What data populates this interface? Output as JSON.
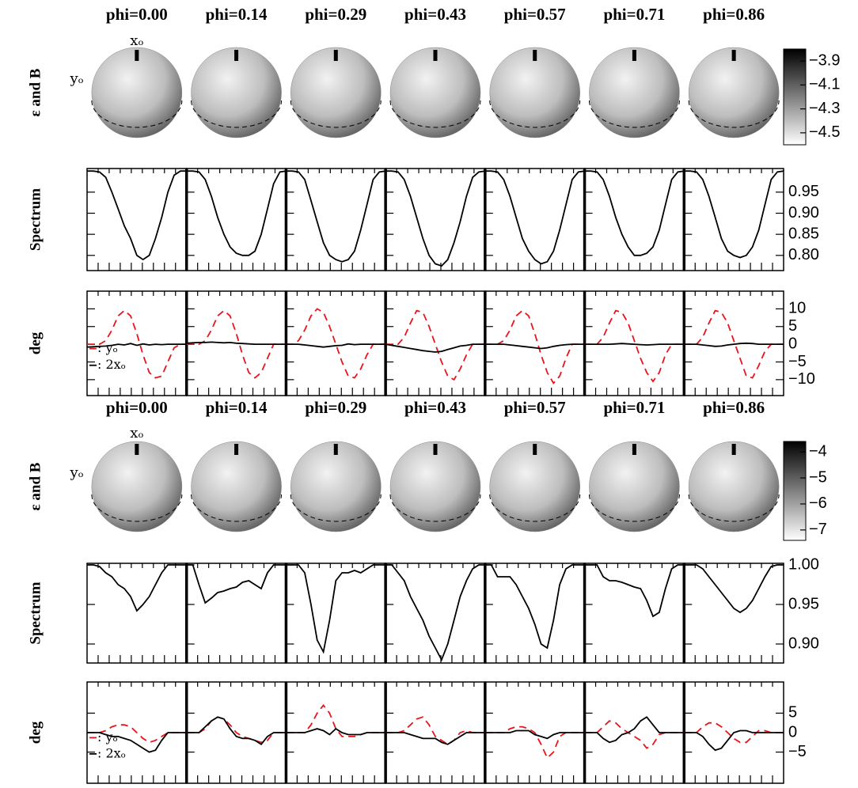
{
  "chart_data": [
    {
      "type": "phase-grid",
      "phases": [
        "phi=0.00",
        "phi=0.14",
        "phi=0.29",
        "phi=0.43",
        "phi=0.57",
        "phi=0.71",
        "phi=0.86"
      ],
      "map": {
        "ylabel": "ε and B",
        "x_label": "xₒ",
        "y_label": "yₒ",
        "colorbar": {
          "ylim": [
            -4.6,
            -3.8
          ],
          "yticks": [
            {
              "value": -3.9,
              "label": "−3.9"
            },
            {
              "value": -4.1,
              "label": "−4.1"
            },
            {
              "value": -4.3,
              "label": "−4.3"
            },
            {
              "value": -4.5,
              "label": "−4.5"
            }
          ]
        }
      },
      "spectrum": {
        "type": "line",
        "ylabel": "Spectrum",
        "color": "#000000",
        "ylim": [
          0.764,
          1.006
        ],
        "yticks": [
          0.95,
          {
            "value": 0.9,
            "label": "0.90"
          },
          0.85,
          {
            "value": 0.8,
            "label": "0.80"
          }
        ],
        "values": [
          [
            1.0,
            1.0,
            0.998,
            0.985,
            0.95,
            0.91,
            0.87,
            0.84,
            0.8,
            0.79,
            0.8,
            0.84,
            0.89,
            0.95,
            0.99,
            1.0,
            1.0
          ],
          [
            1.0,
            1.0,
            0.998,
            0.98,
            0.94,
            0.89,
            0.85,
            0.82,
            0.805,
            0.8,
            0.8,
            0.81,
            0.85,
            0.91,
            0.97,
            0.998,
            1.0
          ],
          [
            1.0,
            1.0,
            0.998,
            0.98,
            0.93,
            0.88,
            0.83,
            0.8,
            0.79,
            0.785,
            0.79,
            0.81,
            0.86,
            0.92,
            0.98,
            0.998,
            1.0
          ],
          [
            1.0,
            1.0,
            0.998,
            0.98,
            0.94,
            0.89,
            0.84,
            0.8,
            0.78,
            0.775,
            0.79,
            0.83,
            0.88,
            0.94,
            0.985,
            0.998,
            1.0
          ],
          [
            1.0,
            1.0,
            0.998,
            0.98,
            0.94,
            0.89,
            0.84,
            0.81,
            0.79,
            0.78,
            0.785,
            0.81,
            0.86,
            0.92,
            0.98,
            0.998,
            1.0
          ],
          [
            1.0,
            1.0,
            0.998,
            0.98,
            0.94,
            0.89,
            0.85,
            0.82,
            0.8,
            0.8,
            0.805,
            0.82,
            0.86,
            0.92,
            0.98,
            0.998,
            1.0
          ],
          [
            1.0,
            1.0,
            0.998,
            0.98,
            0.94,
            0.89,
            0.84,
            0.81,
            0.8,
            0.795,
            0.8,
            0.82,
            0.86,
            0.92,
            0.98,
            0.998,
            1.0
          ]
        ]
      },
      "deg": {
        "type": "line",
        "ylabel": "deg",
        "ylim": [
          -14.5,
          15
        ],
        "yticks": [
          10,
          5,
          0,
          {
            "value": -5,
            "label": "−5"
          },
          {
            "value": -10,
            "label": "−10"
          }
        ],
        "legend": "lower left",
        "series": [
          {
            "name": ":  yₒ",
            "color": "#e8141c",
            "dashed": true,
            "values": [
              [
                0,
                0,
                0,
                1,
                4,
                8,
                9.5,
                8,
                3,
                -3,
                -8,
                -9.5,
                -9,
                -5,
                -1,
                0,
                0
              ],
              [
                0,
                0,
                0,
                1,
                4,
                8,
                9.5,
                8,
                3,
                -3,
                -8,
                -9.5,
                -8,
                -4,
                0,
                0,
                0
              ],
              [
                0,
                0,
                1,
                4,
                8,
                10,
                9,
                5,
                0,
                -5,
                -9,
                -9.5,
                -7,
                -3,
                0,
                0,
                0
              ],
              [
                0,
                0,
                0,
                2,
                6,
                9.5,
                9,
                5,
                0,
                -5,
                -9,
                -10,
                -7,
                -3,
                0,
                0,
                0
              ],
              [
                0,
                0,
                0,
                1,
                4,
                8,
                9.5,
                8,
                3,
                -3,
                -8,
                -11,
                -9,
                -4,
                0,
                0,
                0
              ],
              [
                0,
                0,
                0,
                2,
                6,
                9.5,
                9,
                6,
                1,
                -4,
                -8,
                -10.5,
                -8,
                -3,
                0,
                0,
                0
              ],
              [
                0,
                0,
                0,
                2,
                6,
                9.5,
                9,
                6,
                1,
                -4,
                -9,
                -9.5,
                -6,
                -2,
                0,
                0,
                0
              ]
            ]
          },
          {
            "name": ":  2xₒ",
            "color": "#000000",
            "dashed": false,
            "values": [
              [
                -0.8,
                -0.7,
                -0.6,
                -0.5,
                -0.3,
                0,
                -0.2,
                0.2,
                -0.3,
                0.1,
                -0.2,
                0,
                -0.1,
                0,
                0,
                0,
                0
              ],
              [
                0.3,
                0.4,
                0.5,
                0.5,
                0.6,
                0.5,
                0.4,
                0.5,
                0.3,
                0.2,
                0.1,
                0,
                0,
                0,
                0,
                0,
                0
              ],
              [
                0,
                0,
                0,
                -0.2,
                -0.4,
                -0.6,
                -0.8,
                -0.6,
                -0.4,
                -0.3,
                0.1,
                -0.1,
                0,
                0,
                0,
                0,
                0
              ],
              [
                0,
                -0.3,
                -0.6,
                -0.9,
                -1.2,
                -1.5,
                -1.8,
                -2,
                -2.2,
                -2,
                -1.5,
                -1,
                -0.5,
                -0.3,
                0,
                0,
                0
              ],
              [
                0,
                0,
                0,
                0,
                -0.2,
                -0.4,
                -0.6,
                -0.8,
                -1,
                -1.2,
                -1,
                -0.6,
                -0.3,
                -0.1,
                0,
                0,
                0
              ],
              [
                0,
                0,
                0,
                0,
                0,
                0.1,
                0.2,
                0.1,
                0,
                -0.1,
                -0.2,
                -0.1,
                0,
                0,
                0,
                0,
                0
              ],
              [
                0,
                0,
                0,
                -0.2,
                -0.4,
                -0.6,
                -0.5,
                -0.2,
                0,
                0.2,
                0.3,
                0.2,
                0,
                0,
                0,
                0,
                0
              ]
            ]
          }
        ]
      }
    },
    {
      "type": "phase-grid",
      "phases": [
        "phi=0.00",
        "phi=0.14",
        "phi=0.29",
        "phi=0.43",
        "phi=0.57",
        "phi=0.71",
        "phi=0.86"
      ],
      "map": {
        "ylabel": "ε and B",
        "x_label": "xₒ",
        "y_label": "yₒ",
        "colorbar": {
          "ylim": [
            -7.4,
            -3.6
          ],
          "yticks": [
            {
              "value": -4,
              "label": "−4"
            },
            {
              "value": -5,
              "label": "−5"
            },
            {
              "value": -6,
              "label": "−6"
            },
            {
              "value": -7,
              "label": "−7"
            }
          ]
        }
      },
      "spectrum": {
        "type": "line",
        "ylabel": "Spectrum",
        "color": "#000000",
        "ylim": [
          0.876,
          1.002
        ],
        "yticks": [
          {
            "value": 1.0,
            "label": "1.00"
          },
          0.95,
          {
            "value": 0.9,
            "label": "0.90"
          }
        ],
        "values": [
          [
            1.0,
            1.0,
            0.998,
            0.99,
            0.985,
            0.975,
            0.97,
            0.96,
            0.942,
            0.95,
            0.96,
            0.975,
            0.99,
            1.0,
            1.0,
            1.0,
            1.0
          ],
          [
            1.0,
            1.0,
            0.975,
            0.952,
            0.958,
            0.965,
            0.967,
            0.97,
            0.972,
            0.978,
            0.98,
            0.975,
            0.97,
            0.99,
            1.0,
            1.0,
            1.0
          ],
          [
            1.0,
            1.0,
            1.0,
            0.99,
            0.95,
            0.905,
            0.89,
            0.93,
            0.98,
            0.99,
            0.99,
            0.993,
            0.99,
            0.995,
            1.0,
            1.0,
            1.0
          ],
          [
            1.0,
            1.0,
            0.99,
            0.98,
            0.96,
            0.945,
            0.93,
            0.91,
            0.895,
            0.88,
            0.9,
            0.93,
            0.96,
            0.98,
            0.995,
            1.0,
            1.0
          ],
          [
            1.0,
            1.0,
            0.985,
            0.985,
            0.985,
            0.975,
            0.96,
            0.945,
            0.925,
            0.9,
            0.895,
            0.93,
            0.975,
            0.995,
            1.0,
            1.0,
            1.0
          ],
          [
            1.0,
            1.0,
            1.0,
            0.985,
            0.98,
            0.98,
            0.978,
            0.975,
            0.972,
            0.97,
            0.955,
            0.935,
            0.94,
            0.97,
            0.995,
            1.0,
            1.0
          ],
          [
            1.0,
            1.0,
            1.0,
            0.995,
            0.985,
            0.975,
            0.965,
            0.955,
            0.945,
            0.94,
            0.945,
            0.955,
            0.97,
            0.985,
            0.998,
            1.0,
            1.0
          ]
        ]
      },
      "deg": {
        "type": "line",
        "ylabel": "deg",
        "ylim": [
          -13,
          13
        ],
        "yticks": [
          5,
          0,
          {
            "value": -5,
            "label": "−5"
          }
        ],
        "legend": "lower left",
        "series": [
          {
            "name": ":  yₒ",
            "color": "#e8141c",
            "dashed": true,
            "values": [
              [
                0,
                0,
                0,
                0.5,
                1.5,
                2,
                2,
                1.5,
                0,
                -1.5,
                -2.5,
                -2,
                -1,
                0,
                0,
                0,
                0
              ],
              [
                0,
                0,
                0,
                1,
                3,
                4,
                3.5,
                2,
                0,
                -1,
                -1.5,
                -2,
                -2.5,
                -2,
                0,
                0,
                0
              ],
              [
                0,
                0,
                0,
                0,
                2,
                5,
                7,
                5,
                1,
                -1,
                -1,
                -1,
                -0.5,
                0,
                0,
                0,
                0
              ],
              [
                0,
                0,
                0,
                0.5,
                2,
                3.5,
                4,
                2,
                -1,
                -2,
                -3,
                -2,
                0,
                0.5,
                0,
                0,
                0
              ],
              [
                0,
                0,
                0,
                0,
                1,
                1.5,
                1.5,
                1,
                0,
                -3,
                -6.5,
                -5,
                -1,
                0,
                0,
                0,
                0
              ],
              [
                0,
                0,
                0,
                1.5,
                3,
                2.5,
                1,
                0,
                -1,
                -2,
                -4,
                -3,
                -0.5,
                0,
                0,
                0,
                0
              ],
              [
                0,
                0,
                0,
                1.5,
                2.5,
                2.5,
                1.5,
                0,
                -1.5,
                -2.5,
                -2.5,
                -1,
                0.5,
                0.5,
                0,
                0,
                0
              ]
            ]
          },
          {
            "name": ":  2xₒ",
            "color": "#000000",
            "dashed": false,
            "values": [
              [
                0,
                0,
                0,
                -0.5,
                -1,
                -1,
                -1.5,
                -2,
                -3,
                -4,
                -5,
                -4.5,
                -2,
                0,
                0,
                0,
                0
              ],
              [
                0,
                0,
                0,
                1.5,
                3,
                4,
                3.5,
                1,
                -1,
                -1.5,
                -1.5,
                -2,
                -3,
                -1,
                0,
                0,
                0
              ],
              [
                0,
                0,
                0,
                0,
                0.5,
                1,
                0.5,
                -0.5,
                1,
                0,
                -0.5,
                -0.5,
                -0.5,
                0,
                0,
                0,
                0
              ],
              [
                0,
                0,
                0,
                0,
                -0.5,
                -1,
                -1.5,
                -1.5,
                -1.5,
                -2.5,
                -3,
                -2,
                -1,
                0,
                0,
                0,
                0
              ],
              [
                0,
                0,
                0,
                0,
                0,
                0.5,
                0.5,
                0.5,
                -0.5,
                -1,
                -1.5,
                -0.5,
                0,
                0,
                0,
                0,
                0
              ],
              [
                0,
                0,
                0,
                -1.5,
                -2.5,
                -2,
                -0.5,
                0,
                1,
                3,
                4,
                2,
                0,
                0,
                0,
                0,
                0
              ],
              [
                0,
                0,
                0,
                -1,
                -3,
                -4.5,
                -4,
                -2,
                0,
                0.5,
                0.5,
                0,
                0,
                0,
                0,
                0,
                0
              ]
            ]
          }
        ]
      }
    }
  ]
}
